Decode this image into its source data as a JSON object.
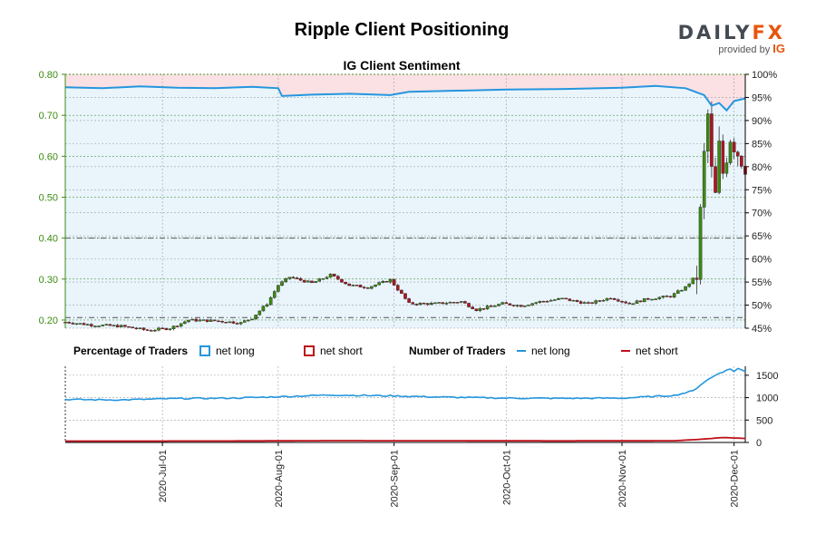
{
  "header": {
    "title": "Ripple Client Positioning",
    "subtitle": "IG Client Sentiment",
    "logo_main_a": "DAILY",
    "logo_main_b": "FX",
    "logo_sub": "provided by",
    "logo_ig": "IG"
  },
  "legend": {
    "pct_title": "Percentage of Traders",
    "num_title": "Number of Traders",
    "net_long": "net long",
    "net_short": "net short"
  },
  "colors": {
    "long": "#2596de",
    "short": "#c0101a",
    "price_axis": "#3c8b10",
    "candle_up": "#3c8b10",
    "candle_down": "#b0151f"
  },
  "chart_data": [
    {
      "type": "candlestick",
      "name": "price",
      "ylim": [
        0.18,
        0.8
      ],
      "y_ticks": [
        "0.20",
        "0.30",
        "0.40",
        "0.50",
        "0.60",
        "0.70",
        "0.80"
      ],
      "x_ticks": [
        "2020-Jul-01",
        "2020-Aug-01",
        "2020-Sep-01",
        "2020-Oct-01",
        "2020-Nov-01",
        "2020-Dec-01"
      ],
      "x_range": [
        "2020-06-05",
        "2020-12-04"
      ],
      "reference_lines": [
        0.206,
        0.4
      ],
      "anchors": [
        [
          "2020-06-05",
          0.195
        ],
        [
          "2020-06-12",
          0.188
        ],
        [
          "2020-06-20",
          0.185
        ],
        [
          "2020-06-27",
          0.175
        ],
        [
          "2020-07-03",
          0.18
        ],
        [
          "2020-07-08",
          0.2
        ],
        [
          "2020-07-15",
          0.198
        ],
        [
          "2020-07-22",
          0.193
        ],
        [
          "2020-07-25",
          0.205
        ],
        [
          "2020-07-29",
          0.24
        ],
        [
          "2020-08-01",
          0.285
        ],
        [
          "2020-08-04",
          0.305
        ],
        [
          "2020-08-10",
          0.29
        ],
        [
          "2020-08-15",
          0.31
        ],
        [
          "2020-08-20",
          0.285
        ],
        [
          "2020-08-25",
          0.28
        ],
        [
          "2020-08-31",
          0.298
        ],
        [
          "2020-09-05",
          0.24
        ],
        [
          "2020-09-12",
          0.24
        ],
        [
          "2020-09-19",
          0.245
        ],
        [
          "2020-09-23",
          0.225
        ],
        [
          "2020-09-30",
          0.24
        ],
        [
          "2020-10-05",
          0.235
        ],
        [
          "2020-10-10",
          0.245
        ],
        [
          "2020-10-16",
          0.252
        ],
        [
          "2020-10-23",
          0.24
        ],
        [
          "2020-10-29",
          0.255
        ],
        [
          "2020-11-03",
          0.24
        ],
        [
          "2020-11-08",
          0.252
        ],
        [
          "2020-11-14",
          0.258
        ],
        [
          "2020-11-18",
          0.28
        ],
        [
          "2020-11-21",
          0.31
        ],
        [
          "2020-11-22",
          0.46
        ],
        [
          "2020-11-23",
          0.6
        ],
        [
          "2020-11-24",
          0.7
        ],
        [
          "2020-11-25",
          0.56
        ],
        [
          "2020-11-26",
          0.5
        ],
        [
          "2020-11-27",
          0.62
        ],
        [
          "2020-11-28",
          0.56
        ],
        [
          "2020-11-30",
          0.65
        ],
        [
          "2020-12-02",
          0.61
        ],
        [
          "2020-12-04",
          0.58
        ]
      ]
    },
    {
      "type": "line",
      "name": "net long %",
      "y_ticks": [
        "45%",
        "50%",
        "55%",
        "60%",
        "65%",
        "70%",
        "75%",
        "80%",
        "85%",
        "90%",
        "95%",
        "100%"
      ],
      "ylim": [
        45,
        100
      ],
      "series": [
        {
          "name": "net long",
          "points": [
            [
              "2020-06-05",
              97.2
            ],
            [
              "2020-06-15",
              97.0
            ],
            [
              "2020-06-25",
              97.4
            ],
            [
              "2020-07-05",
              97.1
            ],
            [
              "2020-07-15",
              97.0
            ],
            [
              "2020-07-25",
              97.3
            ],
            [
              "2020-08-01",
              97.0
            ],
            [
              "2020-08-02",
              95.3
            ],
            [
              "2020-08-10",
              95.6
            ],
            [
              "2020-08-20",
              95.8
            ],
            [
              "2020-08-31",
              95.5
            ],
            [
              "2020-09-05",
              96.2
            ],
            [
              "2020-09-15",
              96.4
            ],
            [
              "2020-10-01",
              96.7
            ],
            [
              "2020-10-15",
              96.8
            ],
            [
              "2020-11-01",
              97.1
            ],
            [
              "2020-11-10",
              97.5
            ],
            [
              "2020-11-18",
              97.0
            ],
            [
              "2020-11-23",
              95.5
            ],
            [
              "2020-11-25",
              93.2
            ],
            [
              "2020-11-27",
              93.8
            ],
            [
              "2020-11-29",
              92.2
            ],
            [
              "2020-12-01",
              94.2
            ],
            [
              "2020-12-04",
              94.8
            ]
          ]
        }
      ]
    },
    {
      "type": "line",
      "name": "Number of Traders",
      "ylim": [
        0,
        1700
      ],
      "y_ticks": [
        "0",
        "500",
        "1000",
        "1500"
      ],
      "series": [
        {
          "name": "net long",
          "points": [
            [
              "2020-06-05",
              960
            ],
            [
              "2020-06-20",
              950
            ],
            [
              "2020-07-05",
              980
            ],
            [
              "2020-07-20",
              990
            ],
            [
              "2020-08-01",
              1020
            ],
            [
              "2020-08-15",
              1060
            ],
            [
              "2020-08-31",
              1040
            ],
            [
              "2020-09-15",
              1010
            ],
            [
              "2020-10-01",
              990
            ],
            [
              "2020-10-15",
              985
            ],
            [
              "2020-11-01",
              990
            ],
            [
              "2020-11-15",
              1050
            ],
            [
              "2020-11-20",
              1150
            ],
            [
              "2020-11-23",
              1350
            ],
            [
              "2020-11-27",
              1550
            ],
            [
              "2020-11-30",
              1640
            ],
            [
              "2020-12-01",
              1590
            ],
            [
              "2020-12-02",
              1650
            ],
            [
              "2020-12-04",
              1580
            ]
          ]
        },
        {
          "name": "net short",
          "points": [
            [
              "2020-06-05",
              30
            ],
            [
              "2020-07-15",
              32
            ],
            [
              "2020-08-15",
              40
            ],
            [
              "2020-09-15",
              38
            ],
            [
              "2020-10-15",
              35
            ],
            [
              "2020-11-15",
              38
            ],
            [
              "2020-11-22",
              70
            ],
            [
              "2020-11-28",
              110
            ],
            [
              "2020-12-04",
              90
            ]
          ]
        }
      ]
    }
  ]
}
